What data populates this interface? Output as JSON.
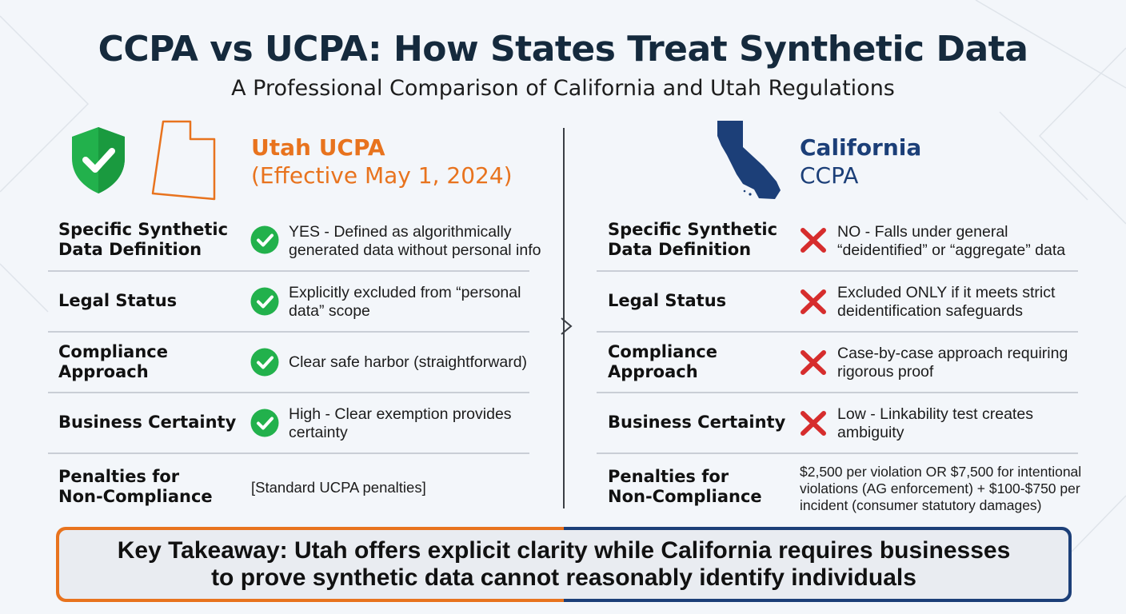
{
  "header": {
    "title": "CCPA vs UCPA: How States Treat Synthetic Data",
    "subtitle": "A Professional Comparison of California and Utah Regulations"
  },
  "colors": {
    "utah_accent": "#e8731e",
    "california_accent": "#1c3f78",
    "check_green": "#22b14c",
    "cross_red": "#d62d2d",
    "title_navy": "#152a3d"
  },
  "utah": {
    "title": "Utah UCPA",
    "subtitle": "(Effective May 1, 2024)",
    "icons": [
      "shield-check-icon",
      "utah-map-icon"
    ],
    "rows": [
      {
        "label_line1": "Specific Synthetic",
        "label_line2": "Data Definition",
        "mark": "check-icon",
        "value_line1": "YES - Defined as algorithmically",
        "value_line2": "generated data without personal info"
      },
      {
        "label_line1": "Legal Status",
        "label_line2": "",
        "mark": "check-icon",
        "value_line1": "Explicitly excluded from “personal",
        "value_line2": "data” scope"
      },
      {
        "label_line1": "Compliance",
        "label_line2": "Approach",
        "mark": "check-icon",
        "value_line1": "Clear safe harbor (straightforward)",
        "value_line2": ""
      },
      {
        "label_line1": "Business Certainty",
        "label_line2": "",
        "mark": "check-icon",
        "value_line1": "High - Clear exemption provides",
        "value_line2": "certainty"
      },
      {
        "label_line1": "Penalties for",
        "label_line2": "Non-Compliance",
        "mark": "",
        "value_line1": "[Standard UCPA penalties]",
        "value_line2": ""
      }
    ]
  },
  "california": {
    "title": "California",
    "subtitle": "CCPA",
    "icons": [
      "california-map-icon"
    ],
    "rows": [
      {
        "label_line1": "Specific Synthetic",
        "label_line2": "Data Definition",
        "mark": "cross-icon",
        "value_line1": "NO - Falls under general",
        "value_line2": "“deidentified” or “aggregate” data"
      },
      {
        "label_line1": "Legal Status",
        "label_line2": "",
        "mark": "cross-icon",
        "value_line1": "Excluded ONLY if it meets strict",
        "value_line2": "deidentification safeguards"
      },
      {
        "label_line1": "Compliance",
        "label_line2": "Approach",
        "mark": "cross-icon",
        "value_line1": "Case-by-case approach requiring",
        "value_line2": "rigorous proof"
      },
      {
        "label_line1": "Business Certainty",
        "label_line2": "",
        "mark": "cross-icon",
        "value_line1": "Low - Linkability test creates",
        "value_line2": "ambiguity"
      },
      {
        "label_line1": "Penalties for",
        "label_line2": "Non-Compliance",
        "mark": "",
        "value_line1": "$2,500 per violation OR $7,500 for intentional",
        "value_line2": "violations (AG enforcement) + $100-$750 per",
        "value_line3": "incident (consumer statutory damages)"
      }
    ]
  },
  "takeaway": {
    "line1": "Key Takeaway: Utah offers explicit clarity while California requires businesses",
    "line2": "to prove synthetic data cannot reasonably identify individuals"
  }
}
